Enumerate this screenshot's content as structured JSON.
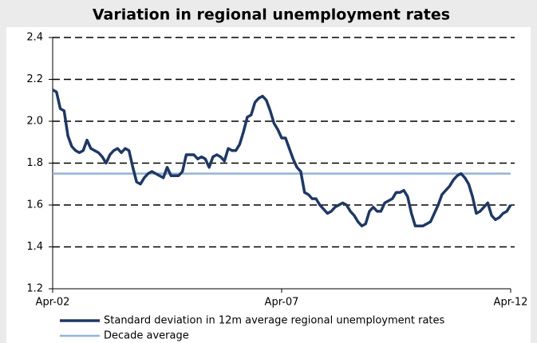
{
  "chart_data": {
    "type": "line",
    "title": "Variation in regional unemployment rates",
    "xlim": [
      0,
      120
    ],
    "xticks": [
      {
        "value": 0,
        "label": "Apr-02"
      },
      {
        "value": 60,
        "label": "Apr-07"
      },
      {
        "value": 120,
        "label": "Apr-12"
      }
    ],
    "ylim": [
      1.2,
      2.4
    ],
    "yticks": [
      {
        "value": 1.2,
        "label": "1.2"
      },
      {
        "value": 1.4,
        "label": "1.4"
      },
      {
        "value": 1.6,
        "label": "1.6"
      },
      {
        "value": 1.8,
        "label": "1.8"
      },
      {
        "value": 2.0,
        "label": "2.0"
      },
      {
        "value": 2.2,
        "label": "2.2"
      },
      {
        "value": 2.4,
        "label": "2.4"
      }
    ],
    "grid": true,
    "series": [
      {
        "name": "Standard deviation in 12m average regional unemployment rates",
        "color": "#1f3864",
        "values": [
          2.15,
          2.14,
          2.06,
          2.05,
          1.93,
          1.88,
          1.86,
          1.85,
          1.86,
          1.91,
          1.87,
          1.86,
          1.85,
          1.83,
          1.8,
          1.84,
          1.86,
          1.87,
          1.85,
          1.87,
          1.86,
          1.78,
          1.71,
          1.7,
          1.73,
          1.75,
          1.76,
          1.75,
          1.74,
          1.73,
          1.78,
          1.74,
          1.74,
          1.74,
          1.76,
          1.84,
          1.84,
          1.84,
          1.82,
          1.83,
          1.82,
          1.78,
          1.83,
          1.84,
          1.83,
          1.81,
          1.87,
          1.86,
          1.86,
          1.89,
          1.95,
          2.02,
          2.03,
          2.09,
          2.11,
          2.12,
          2.1,
          2.05,
          1.99,
          1.96,
          1.92,
          1.92,
          1.87,
          1.82,
          1.78,
          1.76,
          1.66,
          1.65,
          1.63,
          1.63,
          1.6,
          1.58,
          1.56,
          1.57,
          1.59,
          1.6,
          1.61,
          1.6,
          1.57,
          1.55,
          1.52,
          1.5,
          1.51,
          1.57,
          1.59,
          1.57,
          1.57,
          1.61,
          1.62,
          1.63,
          1.66,
          1.66,
          1.67,
          1.64,
          1.56,
          1.5,
          1.5,
          1.5,
          1.51,
          1.52,
          1.56,
          1.6,
          1.65,
          1.67,
          1.69,
          1.72,
          1.74,
          1.75,
          1.73,
          1.7,
          1.64,
          1.56,
          1.57,
          1.59,
          1.61,
          1.55,
          1.53,
          1.54,
          1.56,
          1.57,
          1.6
        ]
      }
    ],
    "reference_line": {
      "name": "Decade average",
      "color": "#95b3d7",
      "value": 1.75
    }
  }
}
